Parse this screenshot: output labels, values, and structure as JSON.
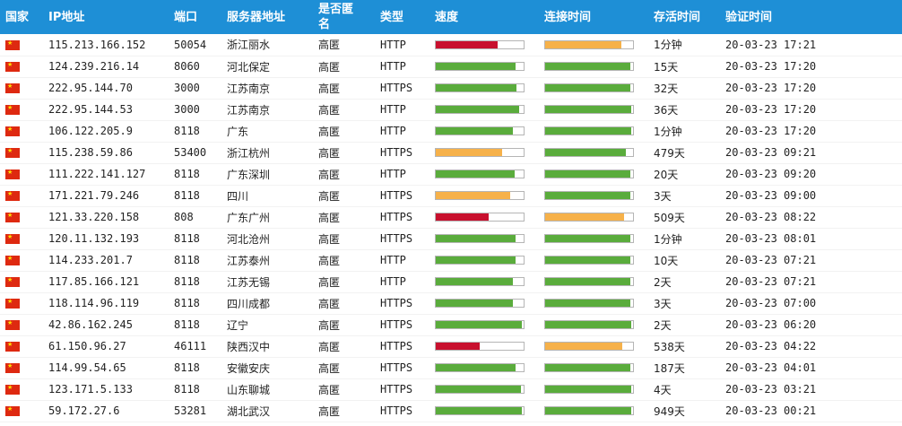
{
  "headers": {
    "country": "国家",
    "ip": "IP地址",
    "port": "端口",
    "location": "服务器地址",
    "anonymity": "是否匿名",
    "type": "类型",
    "speed": "速度",
    "connect_time": "连接时间",
    "alive_time": "存活时间",
    "verify_time": "验证时间"
  },
  "colors": {
    "header_bg": "#1e8fd6",
    "fast": "#5aac3c",
    "medium": "#f6b14a",
    "slow": "#c8102e"
  },
  "rows": [
    {
      "ip": "115.213.166.152",
      "port": "50054",
      "location": "浙江丽水",
      "anonymity": "高匿",
      "type": "HTTP",
      "speed": 0.7,
      "speed_level": "slow",
      "connect": 0.87,
      "connect_level": "medium",
      "alive": "1分钟",
      "verified": "20-03-23 17:21"
    },
    {
      "ip": "124.239.216.14",
      "port": "8060",
      "location": "河北保定",
      "anonymity": "高匿",
      "type": "HTTP",
      "speed": 0.91,
      "speed_level": "fast",
      "connect": 0.97,
      "connect_level": "fast",
      "alive": "15天",
      "verified": "20-03-23 17:20"
    },
    {
      "ip": "222.95.144.70",
      "port": "3000",
      "location": "江苏南京",
      "anonymity": "高匿",
      "type": "HTTPS",
      "speed": 0.92,
      "speed_level": "fast",
      "connect": 0.97,
      "connect_level": "fast",
      "alive": "32天",
      "verified": "20-03-23 17:20"
    },
    {
      "ip": "222.95.144.53",
      "port": "3000",
      "location": "江苏南京",
      "anonymity": "高匿",
      "type": "HTTP",
      "speed": 0.95,
      "speed_level": "fast",
      "connect": 0.98,
      "connect_level": "fast",
      "alive": "36天",
      "verified": "20-03-23 17:20"
    },
    {
      "ip": "106.122.205.9",
      "port": "8118",
      "location": "广东",
      "anonymity": "高匿",
      "type": "HTTP",
      "speed": 0.88,
      "speed_level": "fast",
      "connect": 0.98,
      "connect_level": "fast",
      "alive": "1分钟",
      "verified": "20-03-23 17:20"
    },
    {
      "ip": "115.238.59.86",
      "port": "53400",
      "location": "浙江杭州",
      "anonymity": "高匿",
      "type": "HTTPS",
      "speed": 0.75,
      "speed_level": "medium",
      "connect": 0.92,
      "connect_level": "fast",
      "alive": "479天",
      "verified": "20-03-23 09:21"
    },
    {
      "ip": "111.222.141.127",
      "port": "8118",
      "location": "广东深圳",
      "anonymity": "高匿",
      "type": "HTTP",
      "speed": 0.9,
      "speed_level": "fast",
      "connect": 0.97,
      "connect_level": "fast",
      "alive": "20天",
      "verified": "20-03-23 09:20"
    },
    {
      "ip": "171.221.79.246",
      "port": "8118",
      "location": "四川",
      "anonymity": "高匿",
      "type": "HTTPS",
      "speed": 0.85,
      "speed_level": "medium",
      "connect": 0.97,
      "connect_level": "fast",
      "alive": "3天",
      "verified": "20-03-23 09:00"
    },
    {
      "ip": "121.33.220.158",
      "port": "808",
      "location": "广东广州",
      "anonymity": "高匿",
      "type": "HTTPS",
      "speed": 0.6,
      "speed_level": "slow",
      "connect": 0.9,
      "connect_level": "medium",
      "alive": "509天",
      "verified": "20-03-23 08:22"
    },
    {
      "ip": "120.11.132.193",
      "port": "8118",
      "location": "河北沧州",
      "anonymity": "高匿",
      "type": "HTTPS",
      "speed": 0.91,
      "speed_level": "fast",
      "connect": 0.97,
      "connect_level": "fast",
      "alive": "1分钟",
      "verified": "20-03-23 08:01"
    },
    {
      "ip": "114.233.201.7",
      "port": "8118",
      "location": "江苏泰州",
      "anonymity": "高匿",
      "type": "HTTP",
      "speed": 0.91,
      "speed_level": "fast",
      "connect": 0.97,
      "connect_level": "fast",
      "alive": "10天",
      "verified": "20-03-23 07:21"
    },
    {
      "ip": "117.85.166.121",
      "port": "8118",
      "location": "江苏无锡",
      "anonymity": "高匿",
      "type": "HTTP",
      "speed": 0.88,
      "speed_level": "fast",
      "connect": 0.97,
      "connect_level": "fast",
      "alive": "2天",
      "verified": "20-03-23 07:21"
    },
    {
      "ip": "118.114.96.119",
      "port": "8118",
      "location": "四川成都",
      "anonymity": "高匿",
      "type": "HTTPS",
      "speed": 0.88,
      "speed_level": "fast",
      "connect": 0.97,
      "connect_level": "fast",
      "alive": "3天",
      "verified": "20-03-23 07:00"
    },
    {
      "ip": "42.86.162.245",
      "port": "8118",
      "location": "辽宁",
      "anonymity": "高匿",
      "type": "HTTPS",
      "speed": 0.98,
      "speed_level": "fast",
      "connect": 0.98,
      "connect_level": "fast",
      "alive": "2天",
      "verified": "20-03-23 06:20"
    },
    {
      "ip": "61.150.96.27",
      "port": "46111",
      "location": "陕西汉中",
      "anonymity": "高匿",
      "type": "HTTPS",
      "speed": 0.5,
      "speed_level": "slow",
      "connect": 0.88,
      "connect_level": "medium",
      "alive": "538天",
      "verified": "20-03-23 04:22"
    },
    {
      "ip": "114.99.54.65",
      "port": "8118",
      "location": "安徽安庆",
      "anonymity": "高匿",
      "type": "HTTPS",
      "speed": 0.91,
      "speed_level": "fast",
      "connect": 0.97,
      "connect_level": "fast",
      "alive": "187天",
      "verified": "20-03-23 04:01"
    },
    {
      "ip": "123.171.5.133",
      "port": "8118",
      "location": "山东聊城",
      "anonymity": "高匿",
      "type": "HTTPS",
      "speed": 0.97,
      "speed_level": "fast",
      "connect": 0.98,
      "connect_level": "fast",
      "alive": "4天",
      "verified": "20-03-23 03:21"
    },
    {
      "ip": "59.172.27.6",
      "port": "53281",
      "location": "湖北武汉",
      "anonymity": "高匿",
      "type": "HTTPS",
      "speed": 0.98,
      "speed_level": "fast",
      "connect": 0.98,
      "connect_level": "fast",
      "alive": "949天",
      "verified": "20-03-23 00:21"
    }
  ]
}
